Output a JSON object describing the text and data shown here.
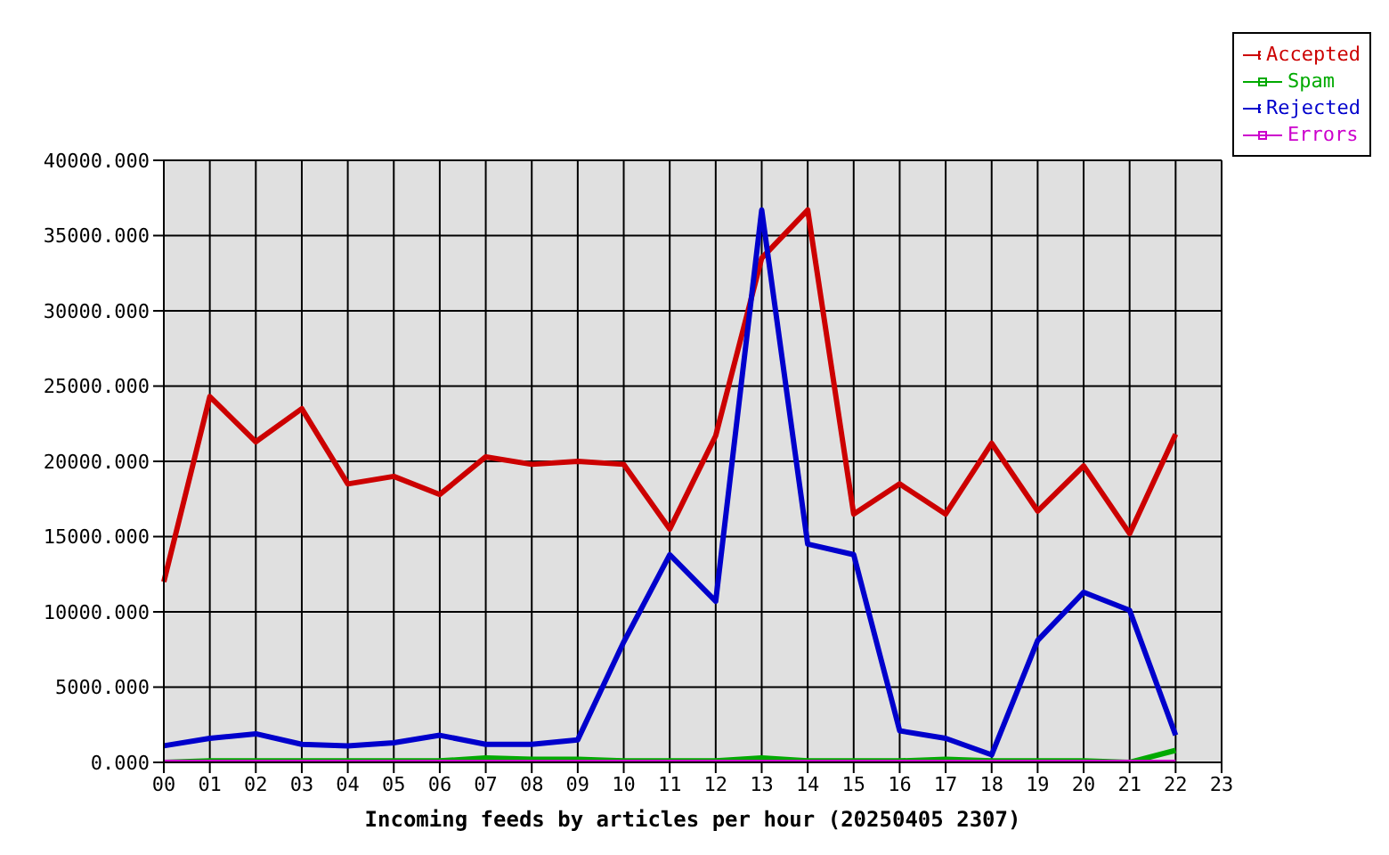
{
  "chart_data": {
    "type": "line",
    "xlabel": "Incoming feeds by articles per hour (20250405 2307)",
    "categories": [
      "00",
      "01",
      "02",
      "03",
      "04",
      "05",
      "06",
      "07",
      "08",
      "09",
      "10",
      "11",
      "12",
      "13",
      "14",
      "15",
      "16",
      "17",
      "18",
      "19",
      "20",
      "21",
      "22",
      "23"
    ],
    "series": [
      {
        "name": "Accepted",
        "color": "#cc0000",
        "values": [
          12000,
          24300,
          21300,
          23500,
          18500,
          19000,
          17800,
          20300,
          19800,
          20000,
          19800,
          15500,
          21700,
          33500,
          36700,
          16500,
          18500,
          16500,
          21200,
          16700,
          19700,
          15200,
          21800,
          null
        ]
      },
      {
        "name": "Spam",
        "color": "#00aa00",
        "values": [
          0,
          100,
          100,
          100,
          100,
          100,
          100,
          300,
          200,
          200,
          100,
          100,
          100,
          300,
          100,
          100,
          100,
          200,
          100,
          100,
          100,
          0,
          800,
          null
        ]
      },
      {
        "name": "Rejected",
        "color": "#0000cc",
        "values": [
          1100,
          1600,
          1900,
          1200,
          1100,
          1300,
          1800,
          1200,
          1200,
          1500,
          8000,
          13800,
          10700,
          36700,
          14500,
          13800,
          2100,
          1600,
          500,
          8100,
          11300,
          10100,
          1800,
          null
        ]
      },
      {
        "name": "Errors",
        "color": "#cc00cc",
        "values": [
          0,
          0,
          0,
          0,
          0,
          0,
          0,
          0,
          0,
          0,
          0,
          0,
          0,
          0,
          0,
          0,
          0,
          0,
          0,
          0,
          0,
          0,
          0,
          null
        ]
      }
    ],
    "ylim": [
      0,
      40000
    ],
    "yticks": [
      {
        "value": 0,
        "label": "0.000"
      },
      {
        "value": 5000,
        "label": "5000.000"
      },
      {
        "value": 10000,
        "label": "10000.000"
      },
      {
        "value": 15000,
        "label": "15000.000"
      },
      {
        "value": 20000,
        "label": "20000.000"
      },
      {
        "value": 25000,
        "label": "25000.000"
      },
      {
        "value": 30000,
        "label": "30000.000"
      },
      {
        "value": 35000,
        "label": "35000.000"
      },
      {
        "value": 40000,
        "label": "40000.000"
      }
    ],
    "grid": true,
    "legend": "top right",
    "marker": "none",
    "line_style": "solid"
  }
}
